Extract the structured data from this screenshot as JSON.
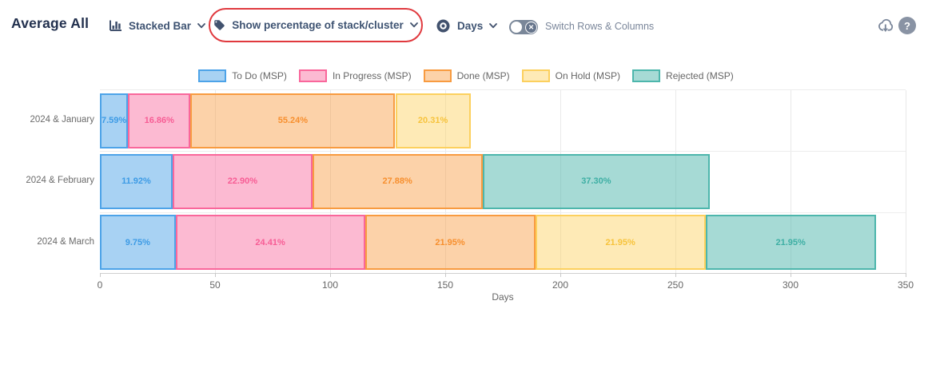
{
  "header": {
    "title": "Average All",
    "chart_type": {
      "label": "Stacked Bar"
    },
    "percentage_mode": {
      "label": "Show percentage of stack/cluster"
    },
    "measure": {
      "label": "Days"
    },
    "switch_toggle": {
      "label": "Switch Rows & Columns",
      "state": "off"
    }
  },
  "icons": {
    "toggle_x": "✕",
    "help": "?"
  },
  "annotation": {
    "shape": "red-oval-highlight",
    "color": "#E0393E"
  },
  "palette": {
    "navy": "#42526E",
    "muted": "#7A869A",
    "axis_text": "#666666"
  },
  "chart_data": {
    "type": "bar",
    "orientation": "horizontal",
    "stacked": true,
    "value_display": "percent-of-stack",
    "title": "",
    "xlabel": "Days",
    "xlim": [
      0,
      350
    ],
    "xticks": [
      0,
      50,
      100,
      150,
      200,
      250,
      300,
      350
    ],
    "grid": true,
    "legend_position": "top",
    "categories": [
      "2024 & January",
      "2024 & February",
      "2024 & March"
    ],
    "totals_days": [
      161,
      265,
      337
    ],
    "series": [
      {
        "name": "To Do (MSP)",
        "fill": "rgba(61,155,229,0.45)",
        "border": "#4DA3E8",
        "label_color": "#3D9BE5",
        "percentages": [
          7.59,
          11.92,
          9.75
        ]
      },
      {
        "name": "In Progress (MSP)",
        "fill": "rgba(249,103,155,0.45)",
        "border": "#F9679B",
        "label_color": "#F75D95",
        "percentages": [
          16.86,
          22.9,
          24.41
        ]
      },
      {
        "name": "Done (MSP)",
        "fill": "rgba(248,155,64,0.45)",
        "border": "#F89B40",
        "label_color": "#F78F2E",
        "percentages": [
          55.24,
          27.88,
          21.95
        ]
      },
      {
        "name": "On Hold (MSP)",
        "fill": "rgba(252,208,94,0.45)",
        "border": "#FCD05E",
        "label_color": "#F7C33C",
        "percentages": [
          20.31,
          0,
          21.95
        ]
      },
      {
        "name": "Rejected (MSP)",
        "fill": "rgba(77,182,172,0.5)",
        "border": "#4DB6AC",
        "label_color": "#3EAFA4",
        "percentages": [
          0,
          37.3,
          21.95
        ]
      }
    ]
  }
}
